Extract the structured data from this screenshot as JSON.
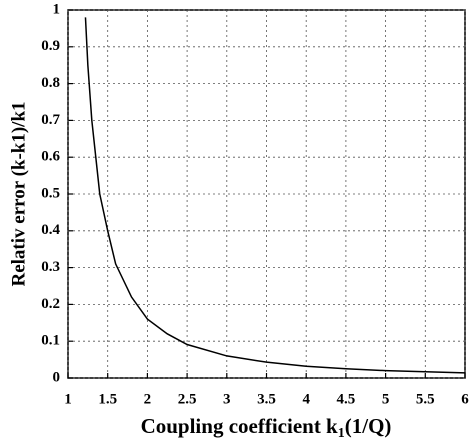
{
  "chart_data": {
    "type": "line",
    "ylabel": "Relativ error (k-k1)/k1",
    "xlabel_parts": [
      "Coupling coefficient k",
      "1",
      "(1/Q)"
    ],
    "x": [
      1.22,
      1.25,
      1.3,
      1.4,
      1.5,
      1.6,
      1.8,
      2,
      2.25,
      2.5,
      3,
      3.5,
      4,
      4.5,
      5,
      5.5,
      6
    ],
    "values": [
      0.98,
      0.85,
      0.7,
      0.5,
      0.4,
      0.31,
      0.22,
      0.16,
      0.12,
      0.091,
      0.06,
      0.043,
      0.032,
      0.025,
      0.02,
      0.017,
      0.014
    ],
    "color": "#000000",
    "xlim": [
      1,
      6
    ],
    "ylim": [
      0,
      1
    ],
    "xticks": [
      1,
      1.5,
      2,
      2.5,
      3,
      3.5,
      4,
      4.5,
      5,
      5.5,
      6
    ],
    "yticks": [
      0,
      0.1,
      0.2,
      0.3,
      0.4,
      0.5,
      0.6,
      0.7,
      0.8,
      0.9,
      1
    ],
    "grid": true
  }
}
